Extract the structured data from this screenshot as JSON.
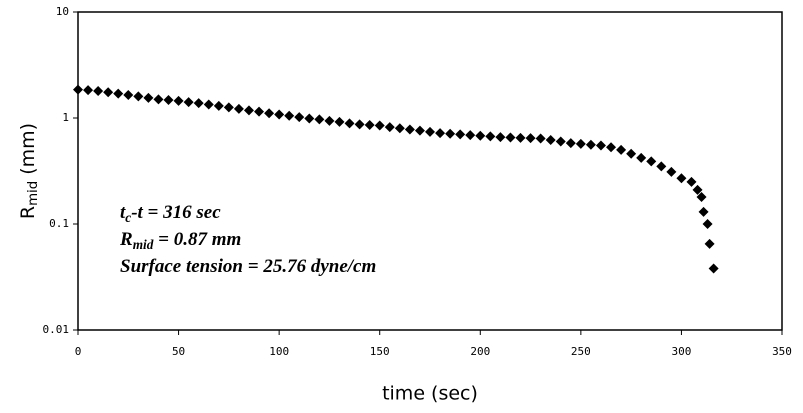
{
  "chart_data": {
    "type": "scatter",
    "x_label": "time (sec)",
    "y_label": {
      "base": "R",
      "sub": "mid",
      "rest": " (mm)"
    },
    "annotations": [
      {
        "base": "t",
        "sub": "c",
        "rest": "-t = 316 sec"
      },
      {
        "base": "R",
        "sub": "mid",
        "rest": " = 0.87 mm"
      },
      {
        "base": "Surface tension = 25.76 dyne/cm",
        "sub": null,
        "rest": null
      }
    ],
    "color": "#000000",
    "log_y": true,
    "xlim": [
      0,
      350
    ],
    "xticks": [
      0,
      50,
      100,
      150,
      200,
      250,
      300,
      350
    ],
    "ylim": [
      0.01,
      10
    ],
    "yticks": [
      0.01,
      0.1,
      1,
      10
    ],
    "x": [
      0,
      5,
      10,
      15,
      20,
      25,
      30,
      35,
      40,
      45,
      50,
      55,
      60,
      65,
      70,
      75,
      80,
      85,
      90,
      95,
      100,
      105,
      110,
      115,
      120,
      125,
      130,
      135,
      140,
      145,
      150,
      155,
      160,
      165,
      170,
      175,
      180,
      185,
      190,
      195,
      200,
      205,
      210,
      215,
      220,
      225,
      230,
      235,
      240,
      245,
      250,
      255,
      260,
      265,
      270,
      275,
      280,
      285,
      290,
      295,
      300,
      305,
      308,
      310,
      311,
      313,
      314,
      316
    ],
    "values": [
      1.85,
      1.83,
      1.8,
      1.75,
      1.7,
      1.65,
      1.6,
      1.55,
      1.5,
      1.48,
      1.45,
      1.41,
      1.38,
      1.34,
      1.3,
      1.26,
      1.22,
      1.18,
      1.15,
      1.11,
      1.08,
      1.05,
      1.02,
      0.99,
      0.97,
      0.94,
      0.92,
      0.89,
      0.87,
      0.86,
      0.85,
      0.82,
      0.8,
      0.78,
      0.76,
      0.74,
      0.72,
      0.71,
      0.7,
      0.69,
      0.68,
      0.67,
      0.66,
      0.655,
      0.65,
      0.645,
      0.64,
      0.62,
      0.6,
      0.58,
      0.57,
      0.56,
      0.55,
      0.53,
      0.5,
      0.46,
      0.42,
      0.39,
      0.35,
      0.31,
      0.27,
      0.25,
      0.21,
      0.18,
      0.13,
      0.1,
      0.065,
      0.038
    ]
  }
}
